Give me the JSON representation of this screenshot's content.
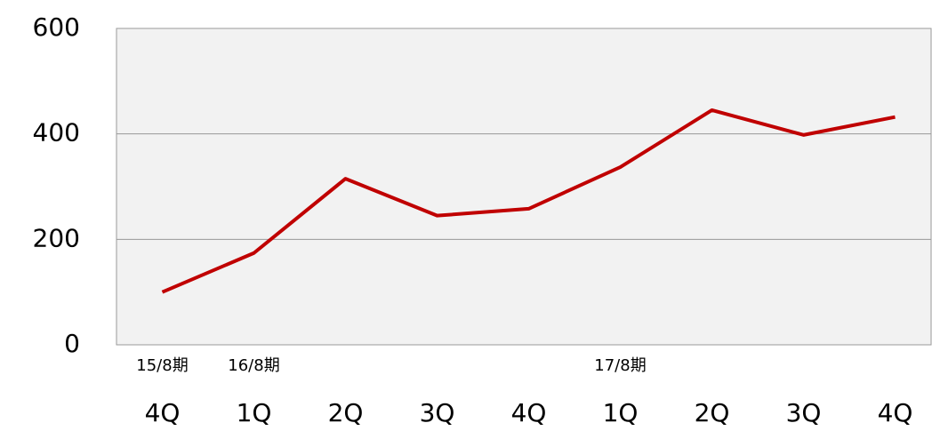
{
  "chart_data": {
    "type": "line",
    "categories": [
      "4Q",
      "1Q",
      "2Q",
      "3Q",
      "4Q",
      "1Q",
      "2Q",
      "3Q",
      "4Q"
    ],
    "period_labels": [
      "15/8期",
      "16/8期",
      null,
      null,
      null,
      "17/8期",
      null,
      null,
      null
    ],
    "series": [
      {
        "color": "#c00000",
        "values": [
          100,
          174,
          315,
          245,
          258,
          337,
          445,
          398,
          432
        ]
      }
    ],
    "ylim": [
      0,
      600
    ],
    "yticks": [
      0,
      200,
      400,
      600
    ],
    "grid": true
  }
}
